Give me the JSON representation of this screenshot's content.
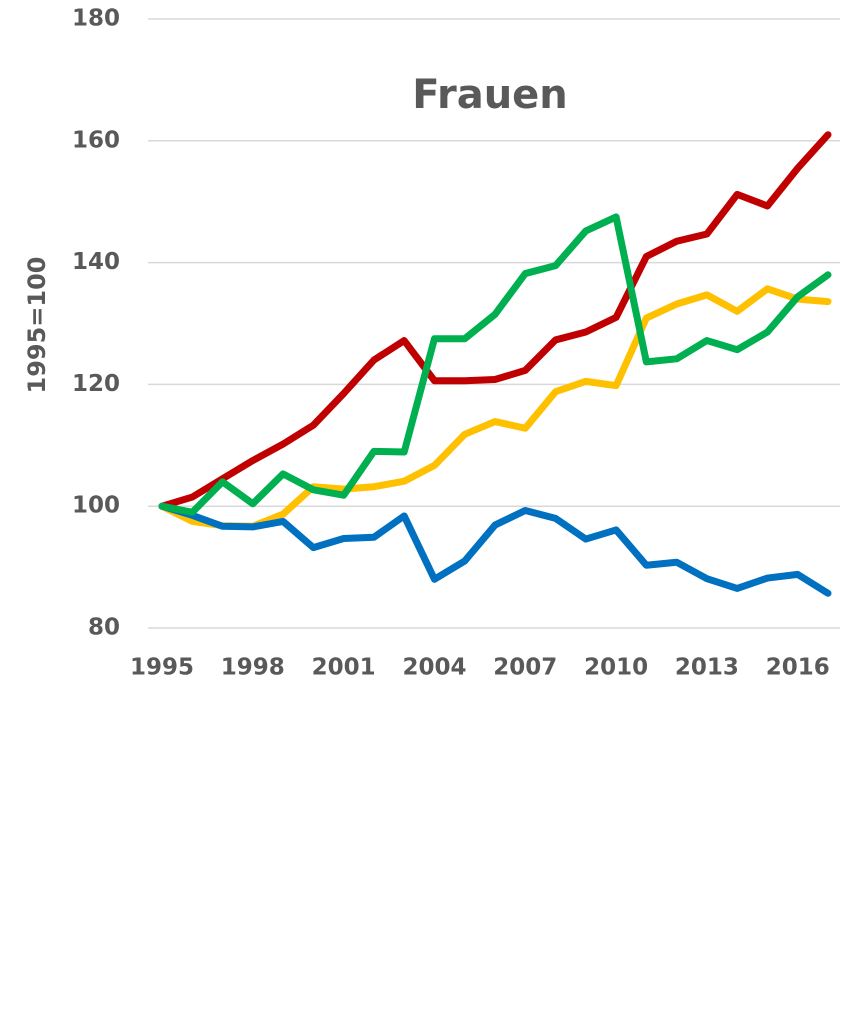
{
  "chart_data": {
    "type": "line",
    "title": "Frauen",
    "y_label": "1995=100",
    "x": [
      1995,
      1996,
      1997,
      1998,
      1999,
      2000,
      2001,
      2002,
      2003,
      2004,
      2005,
      2006,
      2007,
      2008,
      2009,
      2010,
      2011,
      2012,
      2013,
      2014,
      2015,
      2016,
      2017
    ],
    "xlim": [
      1995,
      2017
    ],
    "xticks": [
      1995,
      1998,
      2001,
      2004,
      2007,
      2010,
      2013,
      2016
    ],
    "ylim": [
      80,
      180
    ],
    "yticks": [
      80,
      100,
      120,
      140,
      160,
      180
    ],
    "grid": true,
    "series": [
      {
        "color": "#ffc000",
        "values": [
          100,
          97.5,
          96.8,
          96.7,
          98.7,
          103.2,
          102.8,
          103.2,
          104.1,
          106.7,
          111.8,
          113.9,
          112.8,
          118.8,
          120.5,
          119.8,
          130.9,
          133.2,
          134.7,
          132,
          135.7,
          134,
          133.6
        ]
      },
      {
        "color": "#0070c0",
        "values": [
          100,
          98.5,
          96.7,
          96.6,
          97.5,
          93.2,
          94.7,
          94.9,
          98.4,
          88,
          91,
          96.9,
          99.3,
          98,
          94.6,
          96.1,
          90.3,
          90.8,
          88.1,
          86.5,
          88.2,
          88.8,
          85.7
        ]
      },
      {
        "color": "#c00000",
        "values": [
          100,
          101.5,
          104.5,
          107.5,
          110.2,
          113.3,
          118.5,
          124,
          127.2,
          120.6,
          120.6,
          120.8,
          122.3,
          127.3,
          128.6,
          131,
          141,
          143.5,
          144.7,
          151.2,
          149.3,
          155.5,
          161
        ]
      },
      {
        "color": "#00b050",
        "values": [
          100,
          99,
          104,
          100.4,
          105.3,
          102.7,
          101.8,
          109,
          108.9,
          127.5,
          127.5,
          131.5,
          138.2,
          139.5,
          145.2,
          147.5,
          123.7,
          124.2,
          127.2,
          125.7,
          128.6,
          134.4,
          138
        ]
      }
    ]
  }
}
